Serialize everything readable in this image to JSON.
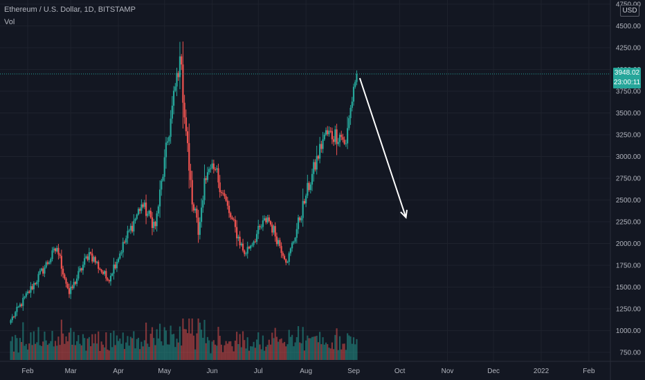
{
  "header": {
    "title": "Ethereum / U.S. Dollar, 1D, BITSTAMP",
    "vol_label": "Vol",
    "currency": "USD"
  },
  "price_tag": {
    "price": "3948.02",
    "countdown": "23:00:11",
    "color": "#26a69a"
  },
  "colors": {
    "background": "#131722",
    "up": "#26a69a",
    "down": "#ef5350",
    "grid": "#1e222d",
    "axis_text": "#b2b5be"
  },
  "chart_data": {
    "type": "candlestick",
    "title": "Ethereum / U.S. Dollar, 1D, BITSTAMP",
    "y_axis": {
      "side": "right",
      "ticks": [
        "750.00",
        "1000.00",
        "1250.00",
        "1500.00",
        "1750.00",
        "2000.00",
        "2250.00",
        "2500.00",
        "2750.00",
        "3000.00",
        "3250.00",
        "3500.00",
        "3750.00",
        "4000.00",
        "4250.00",
        "4500.00",
        "4750.00"
      ],
      "range": [
        650,
        4790
      ]
    },
    "x_axis": {
      "ticks": [
        "Feb",
        "Mar",
        "Apr",
        "May",
        "Jun",
        "Jul",
        "Aug",
        "Sep",
        "Oct",
        "Nov",
        "Dec",
        "2022",
        "Feb"
      ],
      "start_date": "2021-01-21",
      "end_date": "2022-02-23"
    },
    "grid": true,
    "last_price": 3948.02,
    "key_points": [
      {
        "date": "2021-01-21",
        "close": 1120
      },
      {
        "date": "2021-02-20",
        "close": 1950
      },
      {
        "date": "2021-02-28",
        "close": 1420
      },
      {
        "date": "2021-03-13",
        "close": 1900
      },
      {
        "date": "2021-03-25",
        "close": 1580
      },
      {
        "date": "2021-04-16",
        "close": 2450
      },
      {
        "date": "2021-04-25",
        "close": 2200
      },
      {
        "date": "2021-05-11",
        "close": 4150
      },
      {
        "date": "2021-05-19",
        "close": 2450
      },
      {
        "date": "2021-05-21",
        "close": 2400
      },
      {
        "date": "2021-05-23",
        "close": 2100
      },
      {
        "date": "2021-05-27",
        "close": 2750
      },
      {
        "date": "2021-06-03",
        "close": 2850
      },
      {
        "date": "2021-06-12",
        "close": 2350
      },
      {
        "date": "2021-06-22",
        "close": 1880
      },
      {
        "date": "2021-07-07",
        "close": 2300
      },
      {
        "date": "2021-07-20",
        "close": 1790
      },
      {
        "date": "2021-08-01",
        "close": 2550
      },
      {
        "date": "2021-08-13",
        "close": 3250
      },
      {
        "date": "2021-08-23",
        "close": 3250
      },
      {
        "date": "2021-08-27",
        "close": 3150
      },
      {
        "date": "2021-09-01",
        "close": 3800
      },
      {
        "date": "2021-09-03",
        "close": 3948
      }
    ],
    "annotation": {
      "type": "arrow",
      "from": {
        "date": "2021-09-05",
        "price": 3900
      },
      "to": {
        "date": "2021-10-05",
        "price": 2300
      }
    }
  }
}
